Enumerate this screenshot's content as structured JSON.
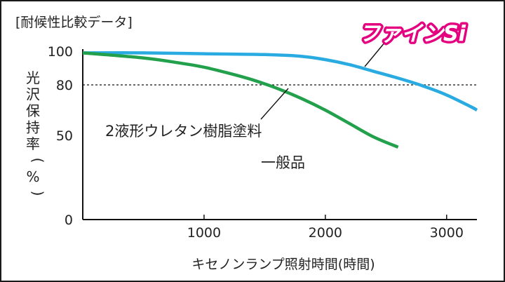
{
  "chart_data": {
    "type": "line",
    "title": "[耐候性比較データ]",
    "xlabel": "キセノンランプ照射時間(時間)",
    "ylabel": "光沢保持率(%)",
    "xlim": [
      0,
      3250
    ],
    "ylim": [
      0,
      100
    ],
    "x_ticks": [
      1000,
      2000,
      3000
    ],
    "y_ticks": [
      0,
      50,
      80,
      100
    ],
    "reference_line": {
      "y": 80,
      "style": "dashed"
    },
    "series": [
      {
        "name": "ファインSi",
        "color": "#29abe2",
        "x": [
          0,
          500,
          1000,
          1500,
          1800,
          2000,
          2200,
          2400,
          2600,
          2800,
          3000,
          3200,
          3250
        ],
        "y": [
          99,
          99,
          98.5,
          98,
          97,
          95,
          92,
          88,
          84,
          79.5,
          74,
          67,
          65
        ]
      },
      {
        "name": "2液形ウレタン樹脂塗料 一般品",
        "color": "#22a04b",
        "x": [
          0,
          500,
          800,
          1000,
          1200,
          1400,
          1600,
          1800,
          2000,
          2200,
          2400,
          2600
        ],
        "y": [
          99,
          96,
          93,
          90.5,
          87,
          83,
          78,
          72,
          65,
          57,
          49,
          43
        ]
      }
    ],
    "legend_labels": {
      "fine_si": "ファインSi",
      "urethane_line1": "2液形ウレタン樹脂塗料",
      "urethane_line2": "一般品"
    }
  }
}
